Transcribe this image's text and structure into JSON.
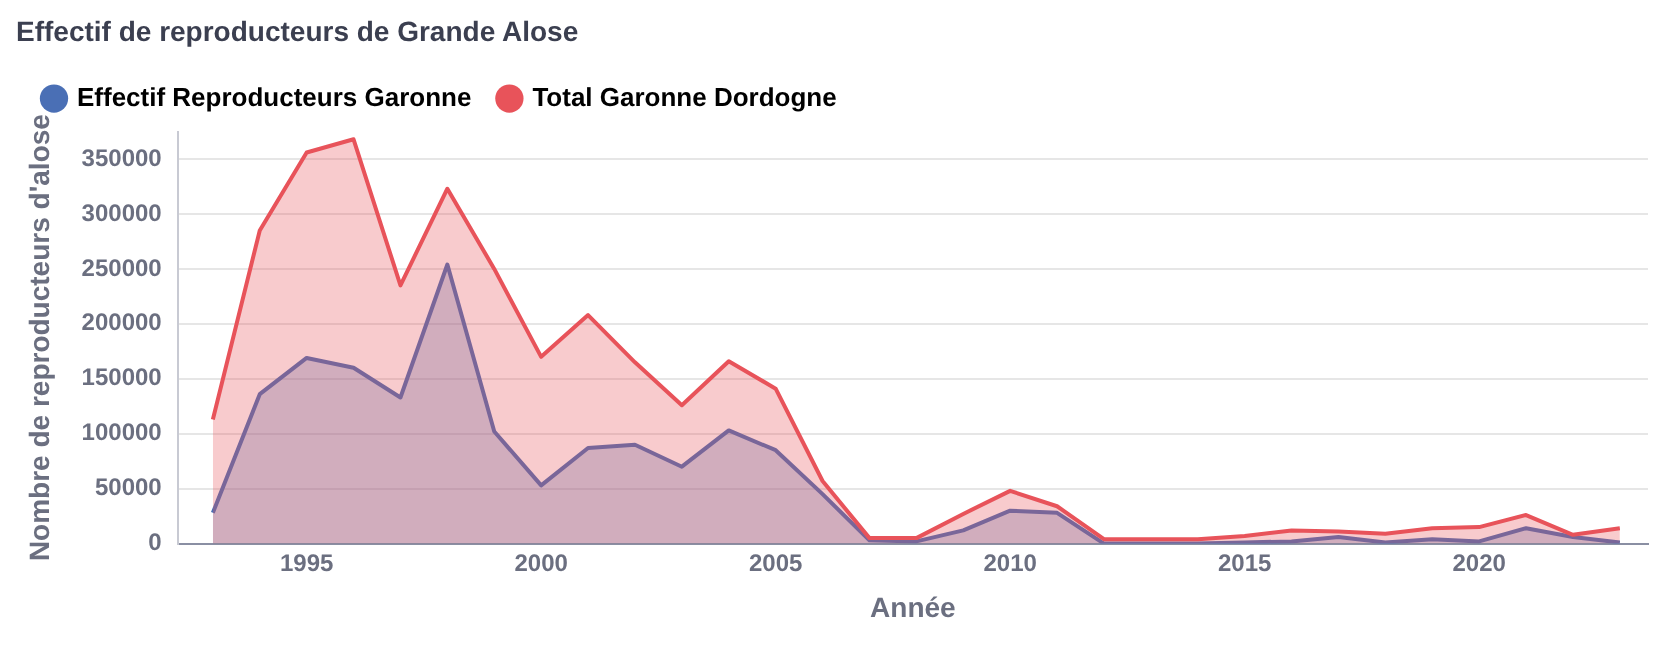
{
  "chart_data": {
    "type": "area",
    "title": "Effectif de reproducteurs de Grande Alose",
    "xlabel": "Année",
    "ylabel": "Nombre de reproducteurs d'alose",
    "x": [
      1993,
      1994,
      1995,
      1996,
      1997,
      1998,
      1999,
      2000,
      2001,
      2002,
      2003,
      2004,
      2005,
      2006,
      2007,
      2008,
      2009,
      2010,
      2011,
      2012,
      2013,
      2014,
      2015,
      2016,
      2017,
      2018,
      2019,
      2020,
      2021,
      2022,
      2023
    ],
    "series": [
      {
        "name": "Effectif Reproducteurs Garonne",
        "color": "#4a6fb5",
        "values": [
          28000,
          136000,
          169000,
          160000,
          133000,
          254000,
          102000,
          53000,
          87000,
          90000,
          70000,
          103000,
          85000,
          45000,
          3000,
          2000,
          12000,
          30000,
          28000,
          0,
          0,
          0,
          1000,
          2000,
          6000,
          1000,
          4000,
          2000,
          14000,
          6000,
          1000
        ]
      },
      {
        "name": "Total Garonne Dordogne",
        "color": "#e8535a",
        "values": [
          113000,
          285000,
          356000,
          368000,
          235000,
          323000,
          250000,
          170000,
          208000,
          165000,
          126000,
          166000,
          141000,
          57000,
          5000,
          5000,
          27000,
          48000,
          34000,
          4000,
          4000,
          4000,
          7000,
          12000,
          11000,
          9000,
          14000,
          15000,
          26000,
          8000,
          14000
        ]
      }
    ],
    "xlim": [
      1992.25,
      2023.6
    ],
    "xticks": [
      1995,
      2000,
      2005,
      2010,
      2015,
      2020
    ],
    "ylim": [
      0,
      375000
    ],
    "yticks": [
      0,
      50000,
      100000,
      150000,
      200000,
      250000,
      300000,
      350000
    ],
    "grid": "y",
    "legend": "top left",
    "marker": "none",
    "line_style": "solid"
  }
}
